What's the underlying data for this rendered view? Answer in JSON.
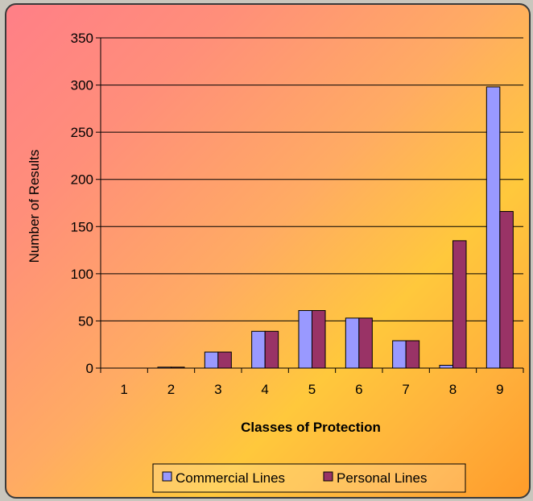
{
  "chart_data": {
    "type": "bar",
    "title": "",
    "xlabel": "Classes of Protection",
    "ylabel": "Number of Results",
    "categories": [
      "1",
      "2",
      "3",
      "4",
      "5",
      "6",
      "7",
      "8",
      "9"
    ],
    "series": [
      {
        "name": "Commercial Lines",
        "color": "#9999ff",
        "values": [
          0,
          1,
          17,
          39,
          61,
          53,
          29,
          3,
          298
        ]
      },
      {
        "name": "Personal Lines",
        "color": "#993366",
        "values": [
          0,
          1,
          17,
          39,
          61,
          53,
          29,
          135,
          166
        ]
      }
    ],
    "ylim": [
      0,
      350
    ],
    "yticks": [
      0,
      50,
      100,
      150,
      200,
      250,
      300,
      350
    ],
    "grid": true,
    "legend_position": "bottom"
  }
}
